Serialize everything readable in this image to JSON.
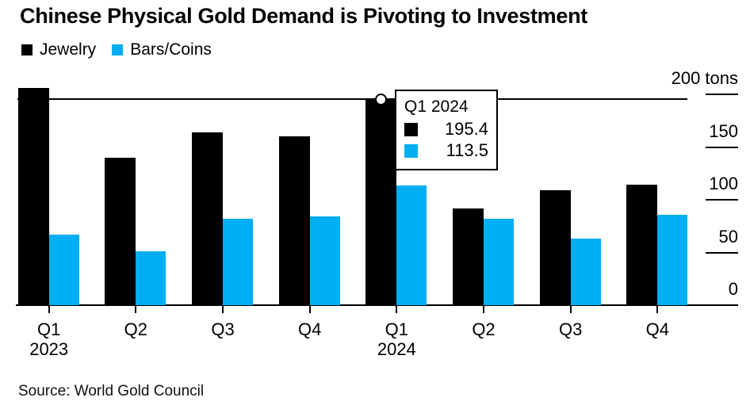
{
  "page": {
    "title": "Chinese Physical Gold Demand is Pivoting to Investment",
    "source": "Source: World Gold Council"
  },
  "colors": {
    "jewelry": "#000000",
    "bars_coins": "#00AEF3"
  },
  "legend": {
    "items": [
      {
        "label": "Jewelry",
        "color": "#000000"
      },
      {
        "label": "Bars/Coins",
        "color": "#00AEF3"
      }
    ]
  },
  "x_axis": {
    "labels": [
      "Q1",
      "Q2",
      "Q3",
      "Q4",
      "Q1",
      "Q2",
      "Q3",
      "Q4"
    ],
    "year_labels": [
      {
        "index": 0,
        "label": "2023"
      },
      {
        "index": 4,
        "label": "2024"
      }
    ]
  },
  "y_axis": {
    "ticks": [
      {
        "value": 200,
        "label": "200 tons"
      },
      {
        "value": 150,
        "label": "150"
      },
      {
        "value": 100,
        "label": "100"
      },
      {
        "value": 50,
        "label": "50"
      },
      {
        "value": 0,
        "label": "0"
      }
    ]
  },
  "chart_data": {
    "type": "bar",
    "title": "Chinese Physical Gold Demand is Pivoting to Investment",
    "categories": [
      "Q1 2023",
      "Q2 2023",
      "Q3 2023",
      "Q4 2023",
      "Q1 2024",
      "Q2 2024",
      "Q3 2024",
      "Q4 2024"
    ],
    "series": [
      {
        "name": "Jewelry",
        "color": "#000000",
        "values": [
          206,
          140,
          164,
          160,
          195.4,
          92,
          109,
          114
        ]
      },
      {
        "name": "Bars/Coins",
        "color": "#00AEF3",
        "values": [
          67,
          51,
          82,
          84,
          113.5,
          82,
          63,
          86
        ]
      }
    ],
    "xlabel": "",
    "ylabel": "tons",
    "ylim": [
      0,
      200
    ],
    "grid": false,
    "legend_position": "top-left",
    "y_axis_side": "right"
  },
  "tooltip": {
    "title": "Q1 2024",
    "highlight_index": 4,
    "rows": [
      {
        "series": "Jewelry",
        "color": "#000000",
        "value": "195.4"
      },
      {
        "series": "Bars/Coins",
        "color": "#00AEF3",
        "value": "113.5"
      }
    ]
  }
}
